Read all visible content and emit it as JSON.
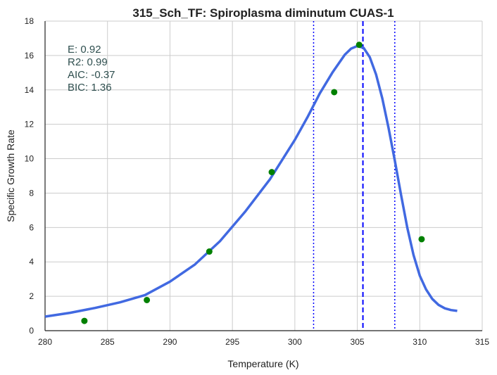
{
  "chart_data": {
    "type": "scatter",
    "title": "315_Sch_TF: Spiroplasma diminutum CUAS-1",
    "xlabel": "Temperature (K)",
    "ylabel": "Specific Growth Rate",
    "xlim": [
      280,
      315
    ],
    "ylim": [
      0,
      18
    ],
    "xticks": [
      280,
      285,
      290,
      295,
      300,
      305,
      310,
      315
    ],
    "yticks": [
      0,
      2,
      4,
      6,
      8,
      10,
      12,
      14,
      16,
      18
    ],
    "grid": true,
    "points": {
      "color": "#008000",
      "x": [
        283.15,
        288.15,
        293.15,
        298.15,
        303.15,
        305.15,
        310.15
      ],
      "y": [
        0.57,
        1.78,
        4.6,
        9.22,
        13.87,
        16.62,
        5.32
      ]
    },
    "fit": {
      "color": "#4169e1",
      "x": [
        280,
        282,
        284,
        286,
        288,
        290,
        292,
        294,
        296,
        298,
        300,
        301,
        302,
        303,
        304,
        304.5,
        305,
        305.5,
        306,
        306.5,
        307,
        307.5,
        308,
        308.5,
        309,
        309.5,
        310,
        310.5,
        311,
        311.5,
        312,
        312.5,
        313
      ],
      "y": [
        0.82,
        1.04,
        1.32,
        1.65,
        2.07,
        2.85,
        3.85,
        5.2,
        6.9,
        8.8,
        11.1,
        12.4,
        13.8,
        15.0,
        16.05,
        16.4,
        16.55,
        16.45,
        15.9,
        14.9,
        13.5,
        11.8,
        9.9,
        7.9,
        6.0,
        4.4,
        3.2,
        2.4,
        1.85,
        1.5,
        1.3,
        1.2,
        1.15
      ]
    },
    "vlines": [
      {
        "x": 305.45,
        "style": "dashed",
        "color": "#0000ff"
      },
      {
        "x": 301.5,
        "style": "dotted",
        "color": "#0000ff"
      },
      {
        "x": 308.0,
        "style": "dotted",
        "color": "#0000ff"
      }
    ],
    "annotation": {
      "color": "#2f4f4f",
      "lines": [
        "E:  0.92",
        "R2:  0.99",
        "AIC: -0.37",
        "BIC: 1.36"
      ]
    }
  }
}
